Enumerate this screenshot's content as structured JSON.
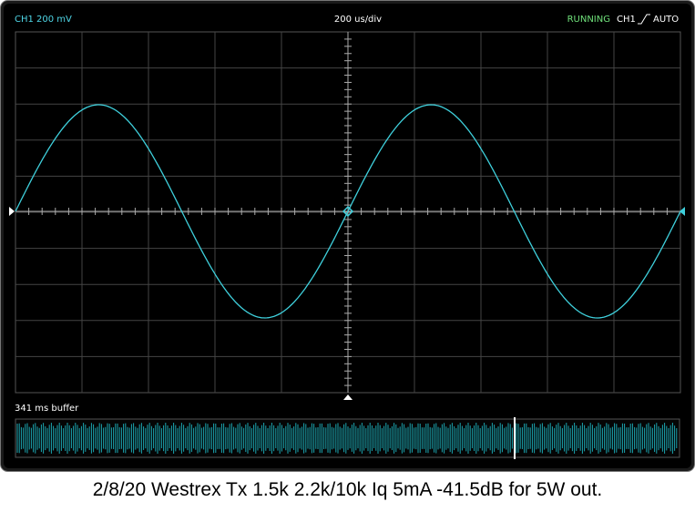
{
  "header": {
    "channel": "CH1 200 mV",
    "timebase": "200 us/div",
    "status": "RUNNING",
    "trigger_channel": "CH1",
    "trigger_mode": "AUTO"
  },
  "buffer": {
    "label": "341 ms buffer"
  },
  "caption": "2/8/20 Westrex Tx 1.5k 2.2k/10k Iq 5mA -41.5dB for 5W out."
}
